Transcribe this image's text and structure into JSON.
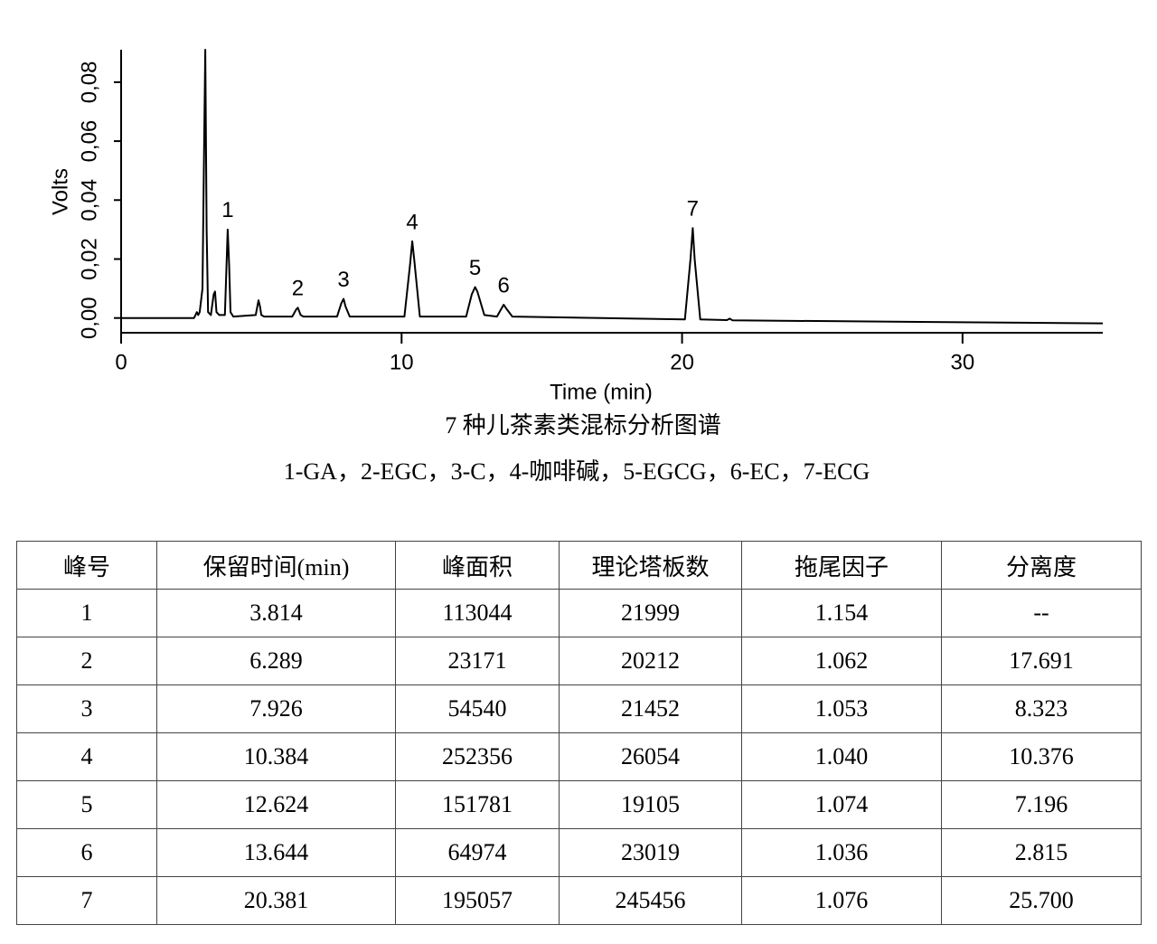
{
  "chart_data": {
    "type": "line",
    "xlabel": "Time (min)",
    "ylabel": "Volts",
    "xlim": [
      0,
      35
    ],
    "xticks": [
      0,
      10,
      20,
      30
    ],
    "ylim": [
      -0.005,
      0.091
    ],
    "yticks": [
      {
        "value": 0,
        "label": "0,00"
      },
      {
        "value": 0.02,
        "label": "0,02"
      },
      {
        "value": 0.04,
        "label": "0,04"
      },
      {
        "value": 0.06,
        "label": "0,06"
      },
      {
        "value": 0.08,
        "label": "0,08"
      }
    ],
    "series": [
      {
        "color": "#000000",
        "x": [
          0,
          2.6,
          2.7,
          2.75,
          2.8,
          2.9,
          2.95,
          3.0,
          3.05,
          3.1,
          3.2,
          3.3,
          3.35,
          3.4,
          3.5,
          3.7,
          3.8,
          3.85,
          3.9,
          4.0,
          4.8,
          4.9,
          4.95,
          5.0,
          5.1,
          6.1,
          6.25,
          6.3,
          6.4,
          6.5,
          7.7,
          7.85,
          7.93,
          8.0,
          8.15,
          10.1,
          10.3,
          10.38,
          10.45,
          10.65,
          12.3,
          12.5,
          12.62,
          12.7,
          12.95,
          13.4,
          13.55,
          13.64,
          13.75,
          13.95,
          20.1,
          20.3,
          20.38,
          20.45,
          20.65,
          21.6,
          21.7,
          21.8,
          35
        ],
        "values": [
          0,
          0,
          0.002,
          0.001,
          0.002,
          0.01,
          0.05,
          0.091,
          0.03,
          0.002,
          0.001,
          0.008,
          0.009,
          0.002,
          0.001,
          0.001,
          0.03,
          0.018,
          0.002,
          0.0005,
          0.001,
          0.006,
          0.004,
          0.001,
          0.0005,
          0.0005,
          0.003,
          0.0035,
          0.001,
          0.0005,
          0.0005,
          0.005,
          0.0065,
          0.004,
          0.0005,
          0.0005,
          0.018,
          0.026,
          0.02,
          0.0005,
          0.0005,
          0.008,
          0.0105,
          0.009,
          0.001,
          0.0005,
          0.003,
          0.0045,
          0.003,
          0.0005,
          -0.0005,
          0.02,
          0.0305,
          0.02,
          -0.0005,
          -0.0007,
          -0.0002,
          -0.0008,
          -0.0018
        ]
      }
    ],
    "peaks": [
      {
        "label": "1",
        "x": 3.8,
        "y": 0.03
      },
      {
        "label": "2",
        "x": 6.3,
        "y": 0.0035
      },
      {
        "label": "3",
        "x": 7.93,
        "y": 0.0065
      },
      {
        "label": "4",
        "x": 10.38,
        "y": 0.026
      },
      {
        "label": "5",
        "x": 12.62,
        "y": 0.0105
      },
      {
        "label": "6",
        "x": 13.64,
        "y": 0.0045
      },
      {
        "label": "7",
        "x": 20.38,
        "y": 0.0305
      }
    ],
    "caption": "7 种儿茶素类混标分析图谱",
    "legend_text": "1-GA，2-EGC，3-C，4-咖啡碱，5-EGCG，6-EC，7-ECG"
  },
  "table": {
    "header": [
      "峰号",
      "保留时间(min)",
      "峰面积",
      "理论塔板数",
      "拖尾因子",
      "分离度"
    ],
    "rows": [
      [
        "1",
        "3.814",
        "113044",
        "21999",
        "1.154",
        "--"
      ],
      [
        "2",
        "6.289",
        "23171",
        "20212",
        "1.062",
        "17.691"
      ],
      [
        "3",
        "7.926",
        "54540",
        "21452",
        "1.053",
        "8.323"
      ],
      [
        "4",
        "10.384",
        "252356",
        "26054",
        "1.040",
        "10.376"
      ],
      [
        "5",
        "12.624",
        "151781",
        "19105",
        "1.074",
        "7.196"
      ],
      [
        "6",
        "13.644",
        "64974",
        "23019",
        "1.036",
        "2.815"
      ],
      [
        "7",
        "20.381",
        "195057",
        "245456",
        "1.076",
        "25.700"
      ]
    ]
  }
}
